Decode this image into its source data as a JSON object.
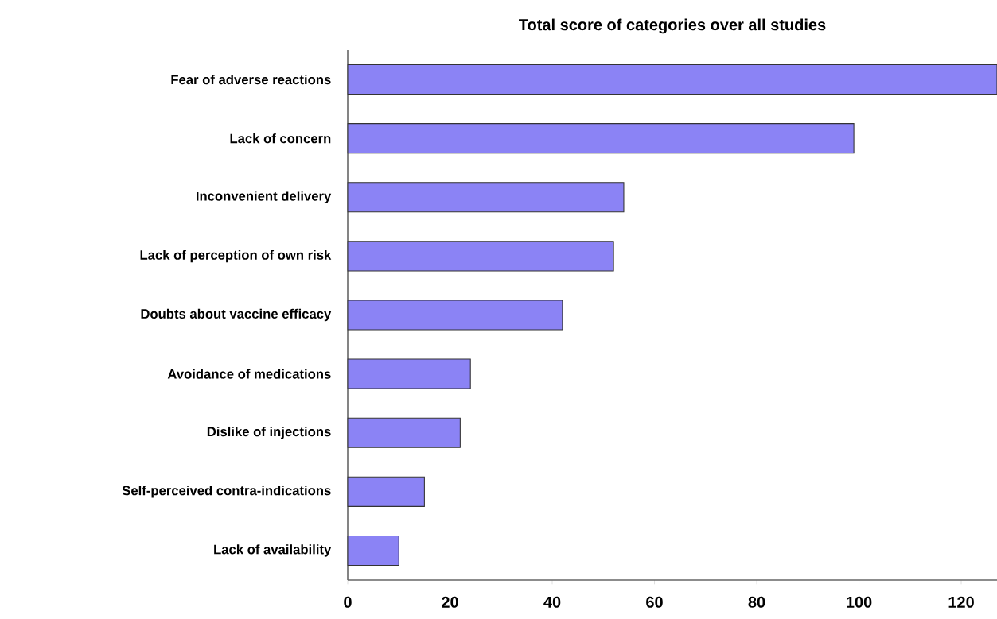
{
  "chart_data": {
    "type": "bar",
    "orientation": "horizontal",
    "title": "Total score of categories over all studies",
    "categories": [
      "Fear of adverse reactions",
      "Lack of concern",
      "Inconvenient delivery",
      "Lack of perception of own risk",
      "Doubts about vaccine efficacy",
      "Avoidance of medications",
      "Dislike of injections",
      "Self-perceived contra-indications",
      "Lack of availability"
    ],
    "values": [
      127,
      99,
      54,
      52,
      42,
      24,
      22,
      15,
      10
    ],
    "color": "#8b83f5",
    "xlim": [
      0,
      127
    ],
    "xticks": [
      0,
      20,
      40,
      60,
      80,
      100,
      120
    ],
    "grid": false
  }
}
